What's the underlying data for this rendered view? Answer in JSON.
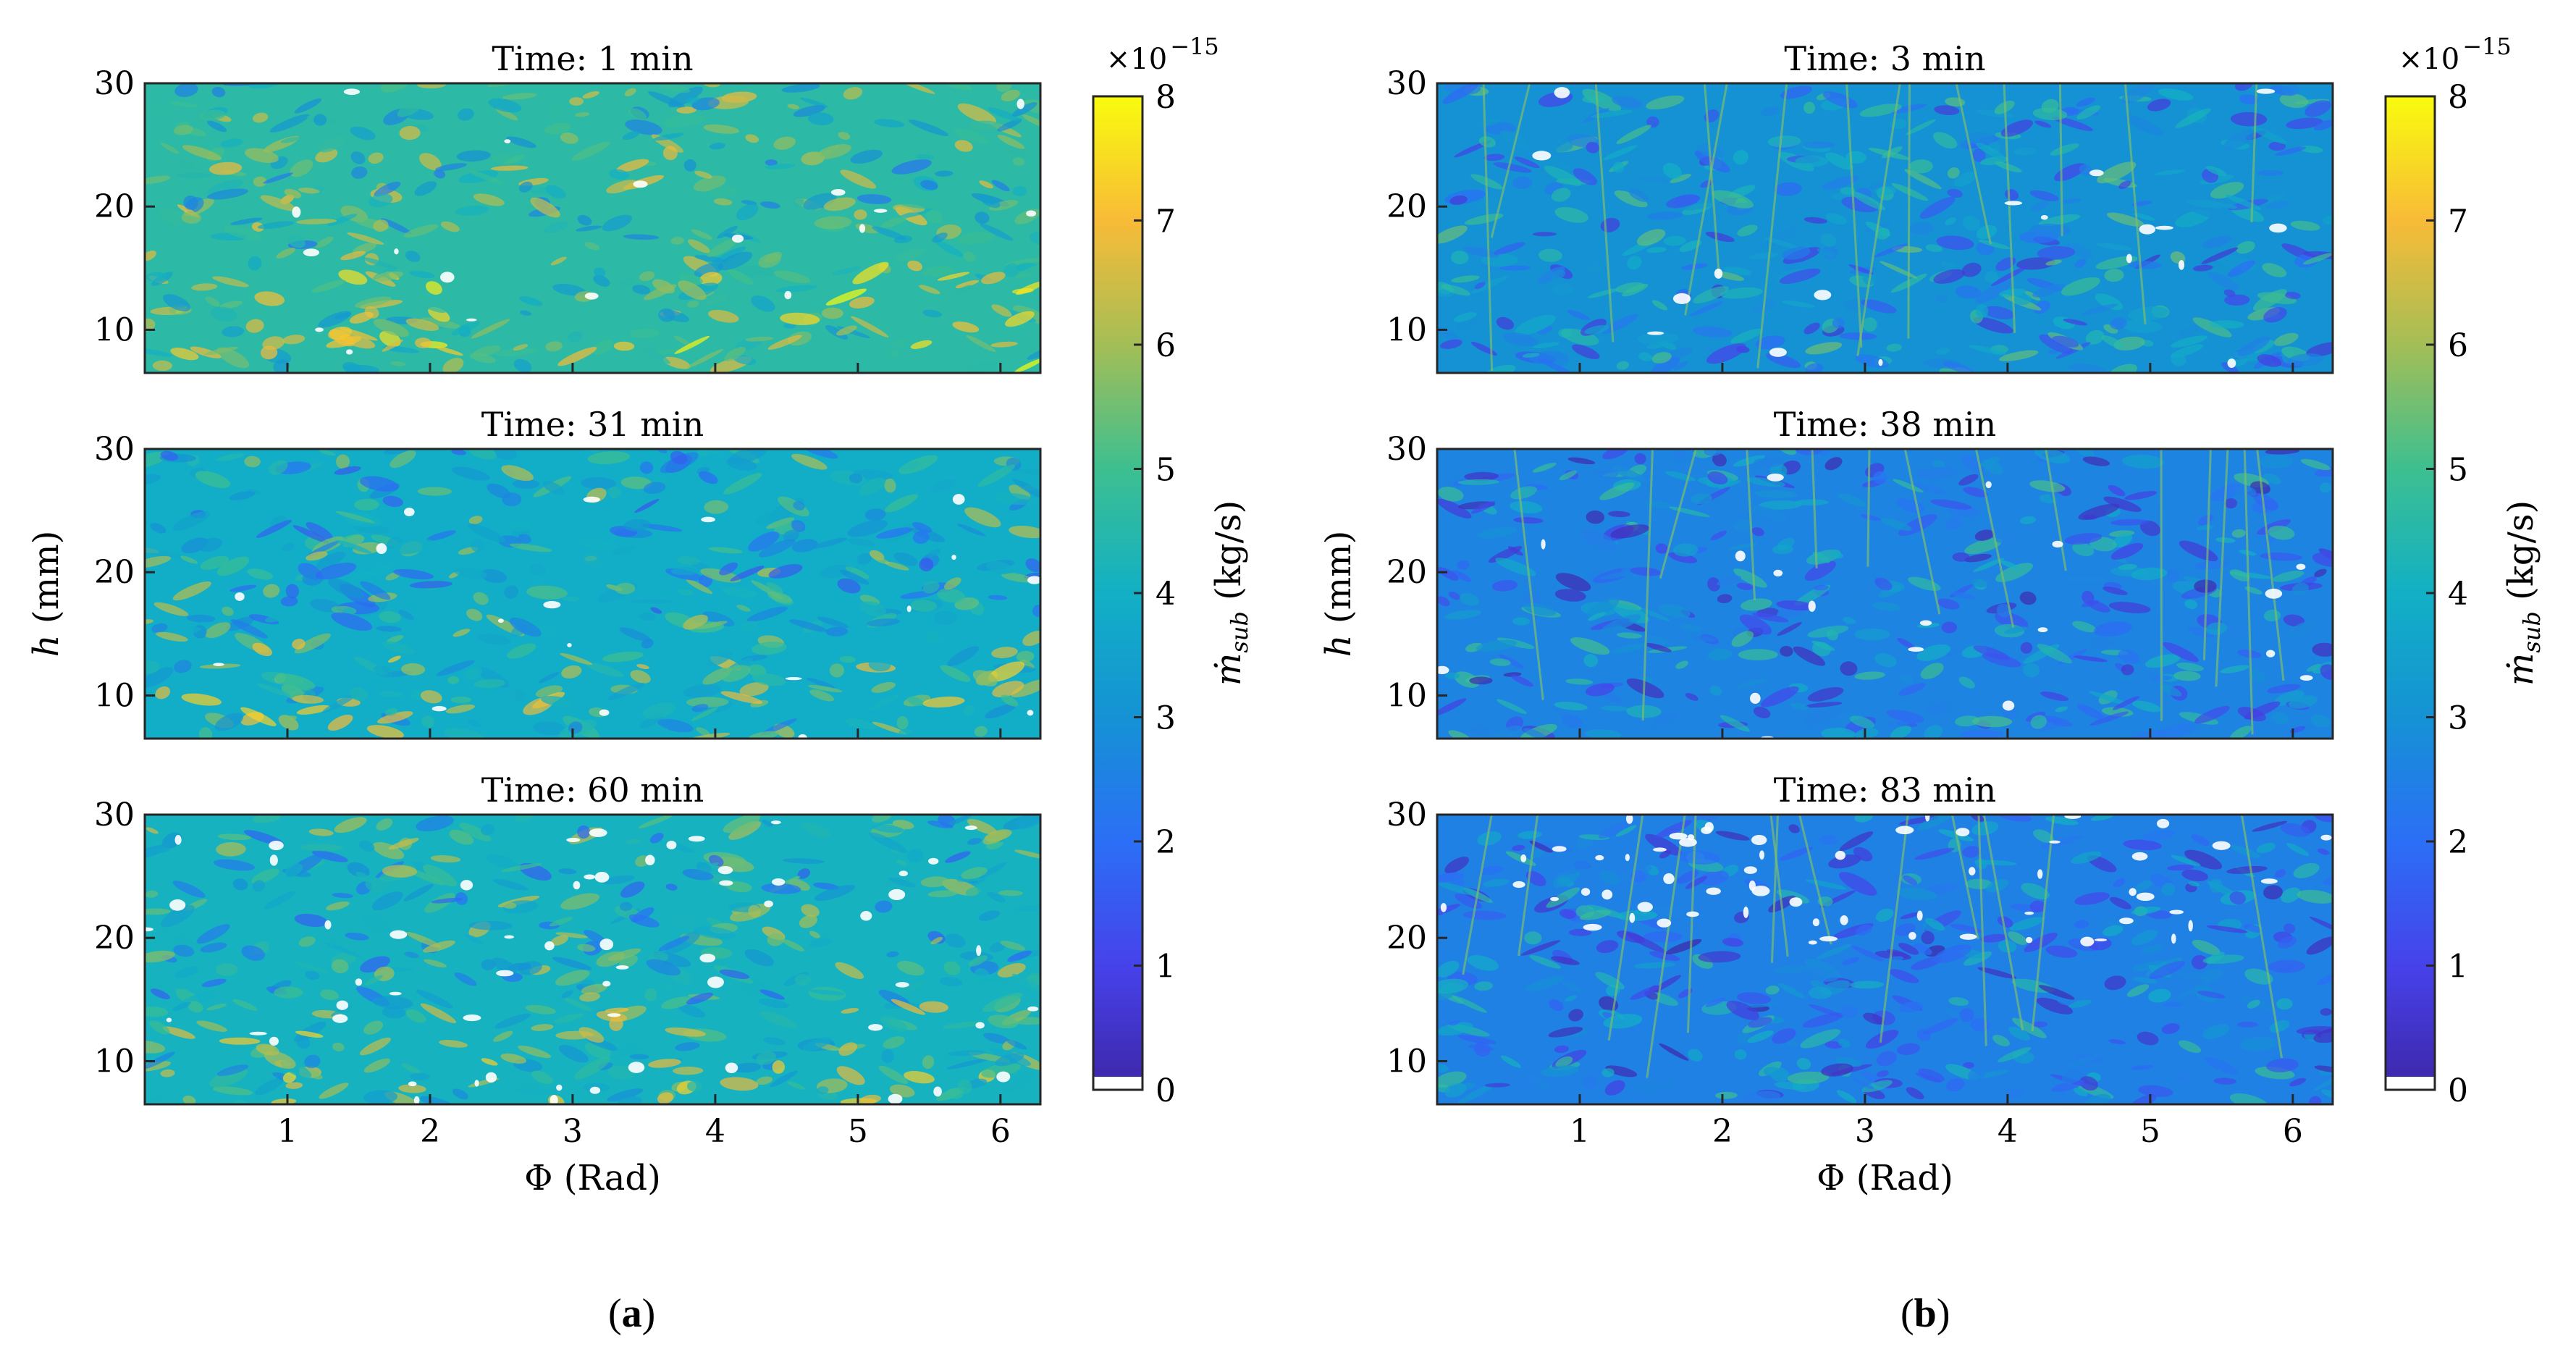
{
  "figure": {
    "panel_labels": [
      "(a)",
      "(b)"
    ],
    "panel_label_bold": [
      "a",
      "b"
    ],
    "colorbar": {
      "label": "ṁ_sub (kg/s)",
      "label_main": "ṁ",
      "label_sub": "sub",
      "label_unit": " (kg/s)",
      "multiplier_text": "×10",
      "multiplier_exp": "−15",
      "ticks": [
        "0",
        "1",
        "2",
        "3",
        "4",
        "5",
        "6",
        "7",
        "8"
      ],
      "range": [
        0,
        8
      ]
    },
    "colors": {
      "parula_low": "#3e26a8",
      "parula_mid": "#1fb4b4",
      "parula_high": "#f9fb0e",
      "axis": "#262626"
    }
  },
  "chart_data": [
    {
      "type": "heatmap",
      "panel": "a",
      "title": "Time: 1 min",
      "xlabel": "Φ (Rad)",
      "ylabel": "h (mm)",
      "x_ticks": [
        1,
        2,
        3,
        4,
        5,
        6
      ],
      "y_ticks": [
        10,
        20,
        30
      ],
      "xlim": [
        0,
        6.28
      ],
      "ylim": [
        6.5,
        30
      ],
      "clim": [
        0,
        8
      ],
      "mean_level": 4.6
    },
    {
      "type": "heatmap",
      "panel": "a",
      "title": "Time: 31 min",
      "xlabel": "Φ (Rad)",
      "ylabel": "h (mm)",
      "x_ticks": [
        1,
        2,
        3,
        4,
        5,
        6
      ],
      "y_ticks": [
        10,
        20,
        30
      ],
      "xlim": [
        0,
        6.28
      ],
      "ylim": [
        6.5,
        30
      ],
      "clim": [
        0,
        8
      ],
      "mean_level": 3.9
    },
    {
      "type": "heatmap",
      "panel": "a",
      "title": "Time: 60 min",
      "xlabel": "Φ (Rad)",
      "ylabel": "h (mm)",
      "x_ticks": [
        1,
        2,
        3,
        4,
        5,
        6
      ],
      "y_ticks": [
        10,
        20,
        30
      ],
      "xlim": [
        0,
        6.28
      ],
      "ylim": [
        6.5,
        30
      ],
      "clim": [
        0,
        8
      ],
      "mean_level": 4.1
    },
    {
      "type": "heatmap",
      "panel": "b",
      "title": "Time: 3 min",
      "xlabel": "Φ (Rad)",
      "ylabel": "h (mm)",
      "x_ticks": [
        1,
        2,
        3,
        4,
        5,
        6
      ],
      "y_ticks": [
        10,
        20,
        30
      ],
      "xlim": [
        0,
        6.28
      ],
      "ylim": [
        6.5,
        30
      ],
      "clim": [
        0,
        8
      ],
      "mean_level": 3.0
    },
    {
      "type": "heatmap",
      "panel": "b",
      "title": "Time: 38 min",
      "xlabel": "Φ (Rad)",
      "ylabel": "h (mm)",
      "x_ticks": [
        1,
        2,
        3,
        4,
        5,
        6
      ],
      "y_ticks": [
        10,
        20,
        30
      ],
      "xlim": [
        0,
        6.28
      ],
      "ylim": [
        6.5,
        30
      ],
      "clim": [
        0,
        8
      ],
      "mean_level": 2.6
    },
    {
      "type": "heatmap",
      "panel": "b",
      "title": "Time: 83 min",
      "xlabel": "Φ (Rad)",
      "ylabel": "h (mm)",
      "x_ticks": [
        1,
        2,
        3,
        4,
        5,
        6
      ],
      "y_ticks": [
        10,
        20,
        30
      ],
      "xlim": [
        0,
        6.28
      ],
      "ylim": [
        6.5,
        30
      ],
      "clim": [
        0,
        8
      ],
      "mean_level": 2.5
    }
  ]
}
